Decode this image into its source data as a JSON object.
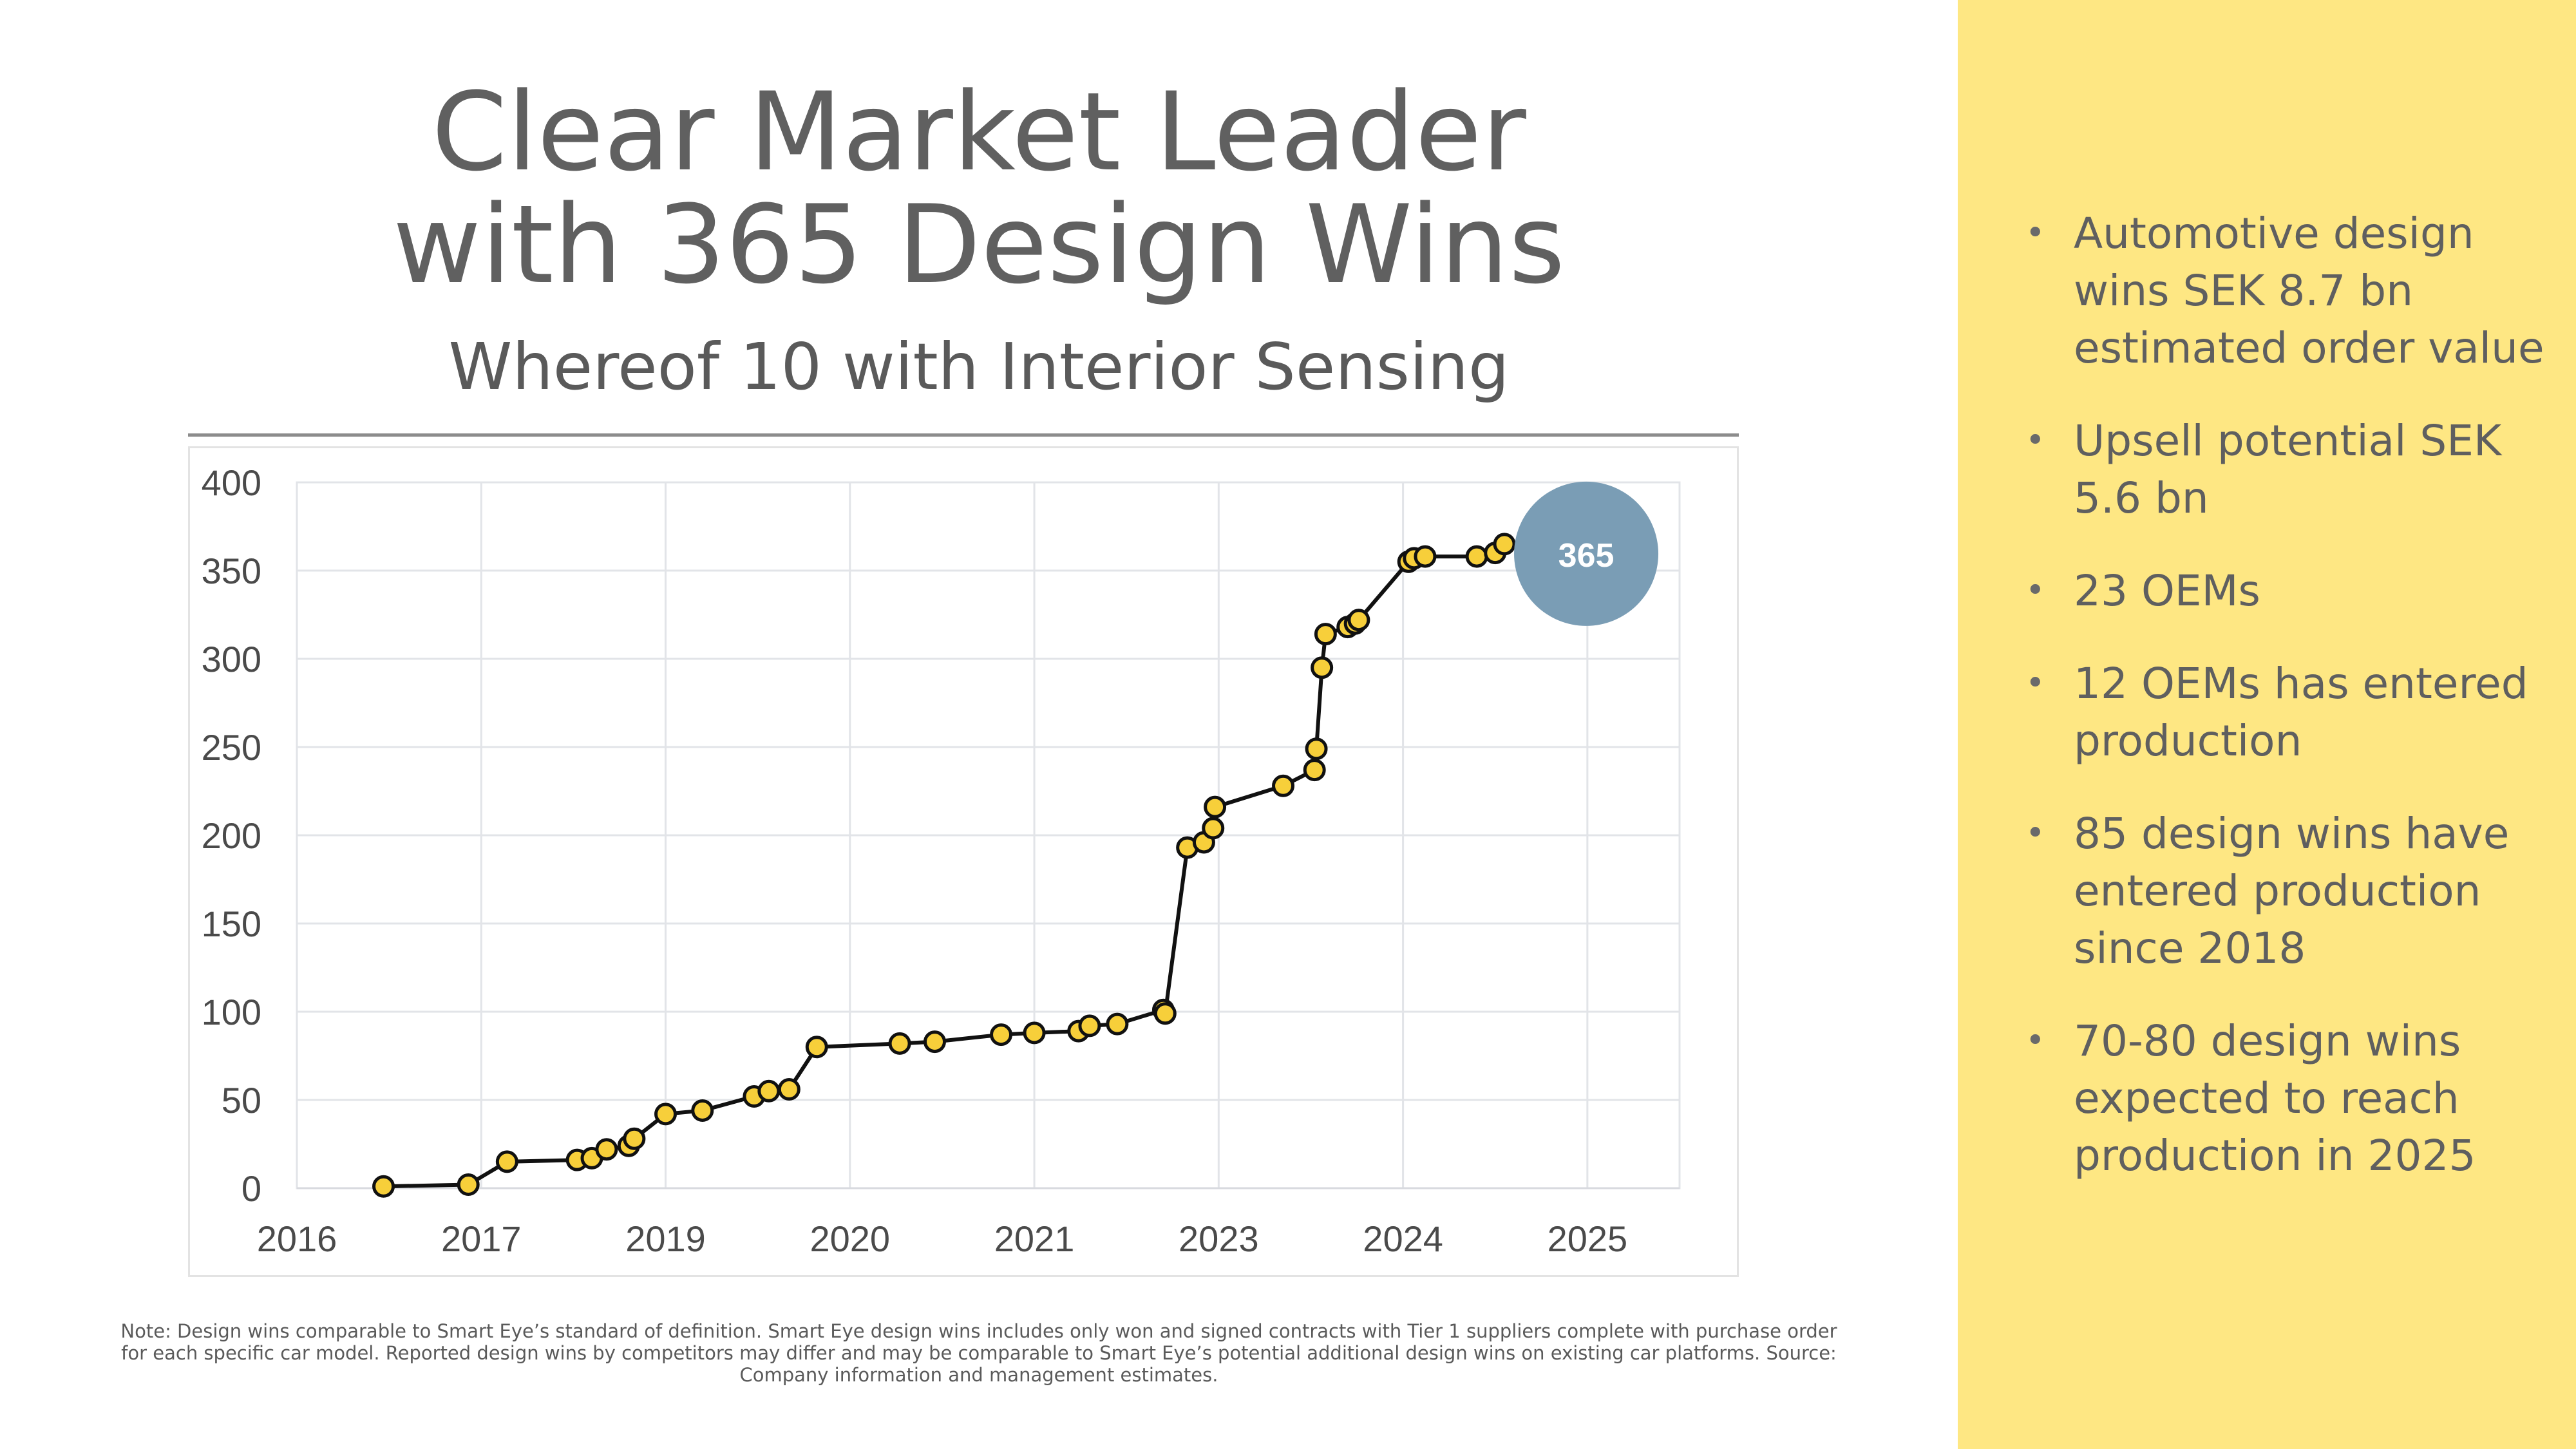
{
  "slide": {
    "title_line1": "Clear Market Leader",
    "title_line2": "with 365 Design Wins",
    "subtitle": "Whereof 10 with Interior Sensing",
    "footnote": "Note: Design wins comparable to Smart Eye’s standard of definition. Smart Eye design wins includes only won and signed contracts with Tier 1 suppliers complete with purchase order for each specific car model. Reported design wins by competitors may differ and may be comparable to Smart Eye’s potential additional design wins on existing car platforms. Source: Company information and management estimates."
  },
  "side_panel": {
    "background": "#fee783",
    "bullets": [
      "Automotive design wins SEK 8.7 bn estimated order value",
      "Upsell potential SEK 5.6 bn",
      "23 OEMs",
      "12 OEMs has entered production",
      "85 design wins have entered production since 2018",
      "70-80 design wins expected to reach production in 2025"
    ]
  },
  "chart_data": {
    "type": "line",
    "title": "",
    "xlabel": "",
    "ylabel": "",
    "x_tick_labels": [
      "2016",
      "2017",
      "2019",
      "2020",
      "2021",
      "2023",
      "2024",
      "2025"
    ],
    "xlim": [
      0,
      7.5
    ],
    "ylim": [
      0,
      400
    ],
    "y_ticks": [
      0,
      50,
      100,
      150,
      200,
      250,
      300,
      350,
      400
    ],
    "grid": true,
    "line_color": "#111111",
    "marker_color": "#f7cf3a",
    "series": [
      {
        "name": "Design wins",
        "points": [
          [
            0.47,
            1
          ],
          [
            0.93,
            2
          ],
          [
            1.14,
            15
          ],
          [
            1.52,
            16
          ],
          [
            1.6,
            17
          ],
          [
            1.68,
            22
          ],
          [
            1.8,
            24
          ],
          [
            1.83,
            28
          ],
          [
            2.0,
            42
          ],
          [
            2.2,
            44
          ],
          [
            2.48,
            52
          ],
          [
            2.56,
            55
          ],
          [
            2.67,
            56
          ],
          [
            2.82,
            80
          ],
          [
            3.27,
            82
          ],
          [
            3.46,
            83
          ],
          [
            3.82,
            87
          ],
          [
            4.0,
            88
          ],
          [
            4.24,
            89
          ],
          [
            4.3,
            92
          ],
          [
            4.45,
            93
          ],
          [
            4.7,
            101
          ],
          [
            4.71,
            99
          ],
          [
            4.83,
            193
          ],
          [
            4.92,
            196
          ],
          [
            4.97,
            204
          ],
          [
            4.98,
            216
          ],
          [
            5.35,
            228
          ],
          [
            5.52,
            237
          ],
          [
            5.53,
            249
          ],
          [
            5.56,
            295
          ],
          [
            5.58,
            314
          ],
          [
            5.7,
            318
          ],
          [
            5.74,
            320
          ],
          [
            5.76,
            322
          ],
          [
            6.03,
            355
          ],
          [
            6.06,
            357
          ],
          [
            6.12,
            358
          ],
          [
            6.4,
            358
          ],
          [
            6.5,
            360
          ],
          [
            6.55,
            365
          ]
        ]
      }
    ],
    "annotation": {
      "label": "365",
      "value": 365,
      "color": "#7a9db5"
    }
  }
}
